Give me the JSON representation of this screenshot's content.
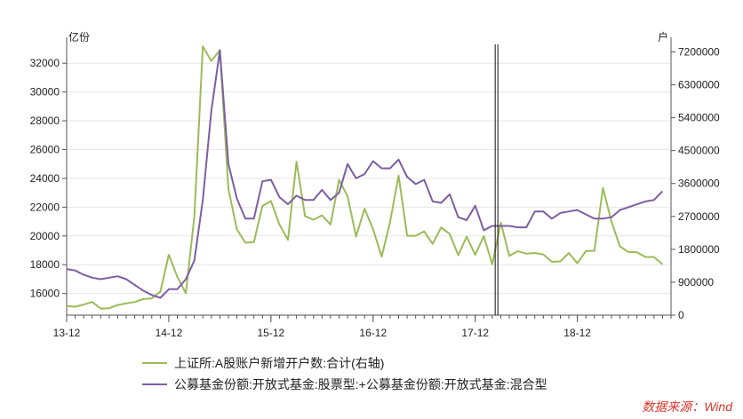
{
  "colors": {
    "green": "#9bbb59",
    "purple": "#7d5fa0",
    "axis": "#555555",
    "grid": "#e6e6e6",
    "source": "#d9342b"
  },
  "legend": {
    "green": "上证所:A股账户新增开户数:合计(右轴)",
    "purple": "公募基金份额:开放式基金:股票型:+公募基金份额:开放式基金:混合型"
  },
  "source": "数据来源：Wind",
  "chart_data": {
    "type": "line",
    "left_axis": {
      "unit": "亿份",
      "ticks": [
        16000,
        18000,
        20000,
        22000,
        24000,
        26000,
        28000,
        30000,
        32000
      ],
      "range": [
        14500,
        33800
      ]
    },
    "right_axis": {
      "unit": "户",
      "ticks": [
        0,
        900000,
        1800000,
        2700000,
        3600000,
        4500000,
        5400000,
        6300000,
        7200000
      ],
      "range": [
        0,
        7600000
      ]
    },
    "x_labels": [
      "13-12",
      "14-12",
      "15-12",
      "16-12",
      "17-12",
      "18-12"
    ],
    "x_range": [
      0,
      71
    ],
    "marker_x": 50.5,
    "series": [
      {
        "name": "上证所:A股账户新增开户数:合计(右轴)",
        "axis": "right",
        "color": "#9bbb59",
        "values": [
          250000,
          230000,
          290000,
          360000,
          180000,
          190000,
          280000,
          320000,
          360000,
          440000,
          460000,
          640000,
          1650000,
          1050000,
          600000,
          2700000,
          7350000,
          6950000,
          7250000,
          3450000,
          2350000,
          1980000,
          2000000,
          2990000,
          3120000,
          2480000,
          2060000,
          4200000,
          2710000,
          2610000,
          2730000,
          2480000,
          3700000,
          3250000,
          2150000,
          2910000,
          2350000,
          1600000,
          2550000,
          3820000,
          2170000,
          2170000,
          2290000,
          1950000,
          2400000,
          2220000,
          1640000,
          2150000,
          1650000,
          2160000,
          1390000,
          2530000,
          1620000,
          1750000,
          1680000,
          1700000,
          1660000,
          1460000,
          1470000,
          1700000,
          1420000,
          1750000,
          1760000,
          3480000,
          2560000,
          1880000,
          1730000,
          1720000,
          1590000,
          1590000,
          1390000
        ]
      },
      {
        "name": "公募基金份额:开放式基金:股票型:+公募基金份额:开放式基金:混合型",
        "axis": "left",
        "color": "#7d5fa0",
        "values": [
          17700,
          17600,
          17300,
          17100,
          17000,
          17100,
          17200,
          17000,
          16600,
          16200,
          15900,
          15700,
          16300,
          16300,
          17000,
          18300,
          22500,
          28700,
          32900,
          25000,
          22600,
          21200,
          21200,
          23800,
          23900,
          22700,
          22200,
          22800,
          22500,
          22500,
          23200,
          22500,
          23000,
          25000,
          24000,
          24300,
          25200,
          24700,
          24700,
          25300,
          24100,
          23600,
          23900,
          22400,
          22300,
          22900,
          21300,
          21100,
          22100,
          20400,
          20700,
          20700,
          20700,
          20600,
          20600,
          21700,
          21700,
          21200,
          21600,
          21700,
          21800,
          21500,
          21200,
          21200,
          21300,
          21800,
          22000,
          22200,
          22400,
          22500,
          23100
        ]
      }
    ]
  }
}
